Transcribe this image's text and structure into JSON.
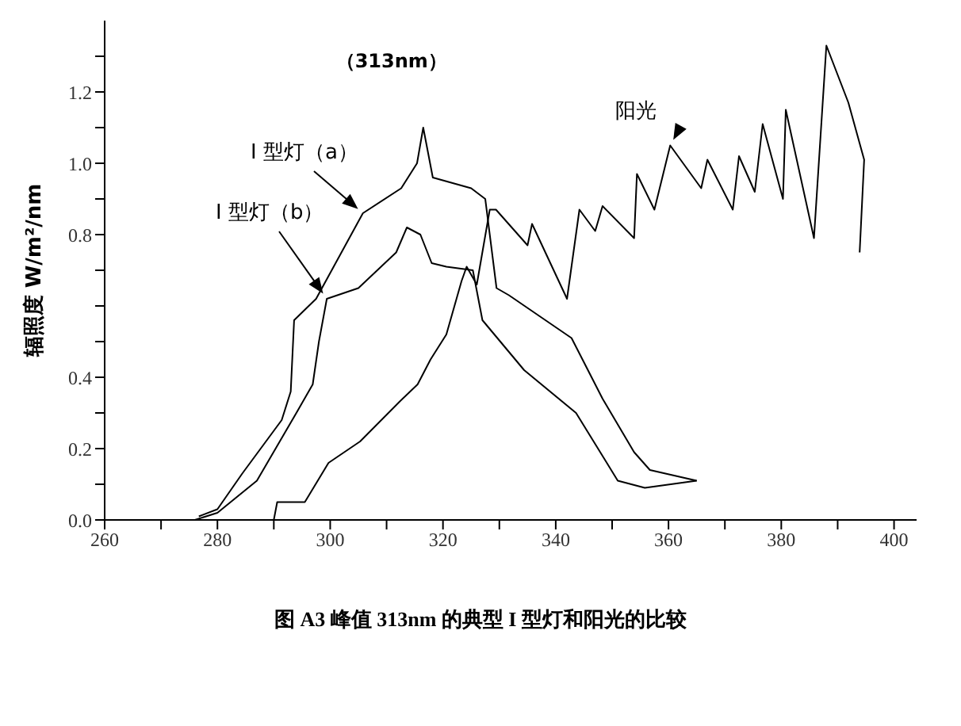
{
  "chart_data": {
    "type": "line",
    "ylabel": "辐照度 W/m²/nm",
    "marker": "none",
    "line_style": "solid",
    "xlim": [
      260,
      404
    ],
    "xticks": [
      260,
      {
        "value": 270,
        "label": null
      },
      280,
      {
        "value": 290,
        "label": null
      },
      300,
      {
        "value": 310,
        "label": null
      },
      320,
      {
        "value": 330,
        "label": null
      },
      340,
      {
        "value": 350,
        "label": null
      },
      360,
      {
        "value": 370,
        "label": null
      },
      380,
      {
        "value": 390,
        "label": null
      },
      400
    ],
    "ylim": [
      0,
      1.4
    ],
    "yticks": [
      {
        "value": 0,
        "label": "0.0"
      },
      {
        "value": 0.1,
        "label": null
      },
      {
        "value": 0.2,
        "label": "0.2"
      },
      {
        "value": 0.3,
        "label": null
      },
      {
        "value": 0.4,
        "label": "0.4"
      },
      {
        "value": 0.5,
        "label": null
      },
      {
        "value": 0.6,
        "label": null
      },
      {
        "value": 0.7,
        "label": null
      },
      {
        "value": 0.8,
        "label": "0.8"
      },
      {
        "value": 0.9,
        "label": null
      },
      {
        "value": 1,
        "label": "1.0"
      },
      {
        "value": 1.1,
        "label": null
      },
      {
        "value": 1.2,
        "label": "1.2"
      },
      {
        "value": 1.3,
        "label": null
      }
    ],
    "series": [
      {
        "name": "I 型灯（a）",
        "color": "#000000",
        "x": [
          276.7,
          280,
          284.4,
          291.4,
          293,
          293.6,
          297.5,
          305.8,
          312.6,
          315.4,
          316.5,
          318.2,
          325,
          327.5,
          329.5,
          331.7,
          342.8,
          348.3,
          353.9,
          356.7,
          365
        ],
        "values": [
          0.01,
          0.03,
          0.13,
          0.28,
          0.36,
          0.56,
          0.62,
          0.86,
          0.93,
          1.0,
          1.1,
          0.96,
          0.93,
          0.9,
          0.65,
          0.63,
          0.51,
          0.34,
          0.19,
          0.14,
          0.11
        ]
      },
      {
        "name": "I 型灯（b）",
        "color": "#000000",
        "x": [
          276,
          280,
          287,
          294,
          296.9,
          298,
          299.4,
          305,
          311.7,
          313.6,
          316,
          318,
          320.6,
          325.3,
          327,
          334.4,
          343.6,
          351,
          355.8,
          365
        ],
        "values": [
          0.0,
          0.02,
          0.11,
          0.3,
          0.38,
          0.5,
          0.62,
          0.65,
          0.75,
          0.82,
          0.8,
          0.72,
          0.71,
          0.7,
          0.56,
          0.42,
          0.3,
          0.11,
          0.09,
          0.11
        ]
      },
      {
        "name": "阳光",
        "color": "#000000",
        "x": [
          290,
          290.6,
          295.5,
          299.7,
          305.3,
          312.2,
          315.5,
          317.8,
          320.6,
          323.3,
          324.2,
          326,
          328.3,
          329.4,
          335,
          335.8,
          342,
          344.2,
          347,
          348.3,
          353.9,
          354.4,
          357.5,
          360.3,
          365.8,
          366.9,
          371.4,
          372.5,
          375.3,
          376.7,
          380.3,
          380.8,
          385.8,
          388,
          391.9,
          394.7,
          393.9
        ],
        "values": [
          0.0,
          0.05,
          0.05,
          0.16,
          0.22,
          0.33,
          0.38,
          0.45,
          0.52,
          0.67,
          0.71,
          0.66,
          0.87,
          0.87,
          0.77,
          0.83,
          0.62,
          0.87,
          0.81,
          0.88,
          0.79,
          0.97,
          0.87,
          1.05,
          0.93,
          1.01,
          0.87,
          1.02,
          0.92,
          1.11,
          0.9,
          1.15,
          0.79,
          1.33,
          1.17,
          1.01,
          0.75
        ]
      }
    ],
    "annotations": [
      {
        "text": "（313nm）",
        "x": 316.5,
        "y": 1.1
      },
      "图 A3 峰值 313nm 的典型 I 型灯和阳光的比较"
    ]
  }
}
